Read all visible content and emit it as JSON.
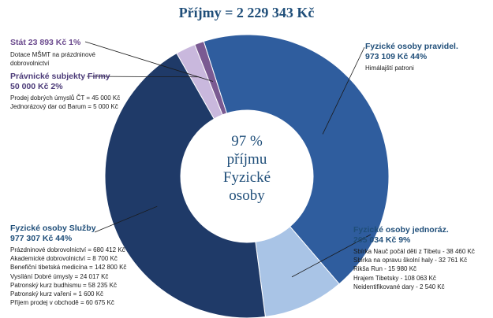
{
  "title": "Příjmy = 2 229 343 Kč",
  "center_label": [
    "97 %",
    "příjmu",
    "Fyzické",
    "osoby"
  ],
  "chart_data": {
    "type": "pie",
    "variant": "donut",
    "title": "Příjmy = 2 229 343 Kč",
    "total": 2229343,
    "categories": [
      "Fyzické osoby pravidel.",
      "Fyzické osoby jednoráz.",
      "Fyzické osoby Služby",
      "Právnické subjekty Firmy",
      "Stát"
    ],
    "values": [
      973109,
      205034,
      977307,
      50000,
      23893
    ],
    "percent": [
      44,
      9,
      44,
      2,
      1
    ],
    "colors": [
      "#2f5d9e",
      "#a9c4e6",
      "#1f3a68",
      "#c9b8dd",
      "#7a5a92"
    ]
  },
  "labels": {
    "stat": {
      "head": [
        "Stát 23 893 Kč 1%"
      ],
      "lines": [
        "Dotace MŠMT na prázdninové",
        "dobrovolnictví"
      ]
    },
    "pravnicke": {
      "head": [
        "Právnické subjekty Firmy",
        "50 000 Kč 2%"
      ],
      "lines": [
        "Prodej dobrých úmyslů ČT = 45 000 Kč",
        "Jednorázový dar od Barum = 5 000 Kč"
      ]
    },
    "pravidel": {
      "head": [
        "Fyzické osoby pravidel.",
        "973 109 Kč 44%"
      ],
      "lines": [
        "Himálajští patroni"
      ]
    },
    "jednoraz": {
      "head": [
        "Fyzické osoby jednoráz.",
        "205 034 Kč 9%"
      ],
      "lines": [
        "Sbírka Nauč počál děti z Tibetu - 38 460 Kč",
        "Sbírka na opravu školní haly - 32 761 Kč",
        "Rikša Run - 15 980 Kč",
        "Hrajem Tibetsky - 108 063 Kč",
        "Neidentifikované dary - 2 540 Kč"
      ]
    },
    "sluzby": {
      "head": [
        "Fyzické osoby Služby",
        "977 307 Kč 44%"
      ],
      "lines": [
        "Prázdninové dobrovolnictví = 680 412 Kč",
        "Akademické dobrovolnictví = 8 700 Kč",
        "Benefiční tibetská medicína = 142 800 Kč",
        "Vysílání Dobré úmysly = 24 017 Kč",
        "Patronský kurz budhismu = 58 235 Kč",
        "Patronský kurz vaření = 1 600 Kč",
        "Příjem prodej v obchodě = 60 675 Kč"
      ]
    }
  }
}
